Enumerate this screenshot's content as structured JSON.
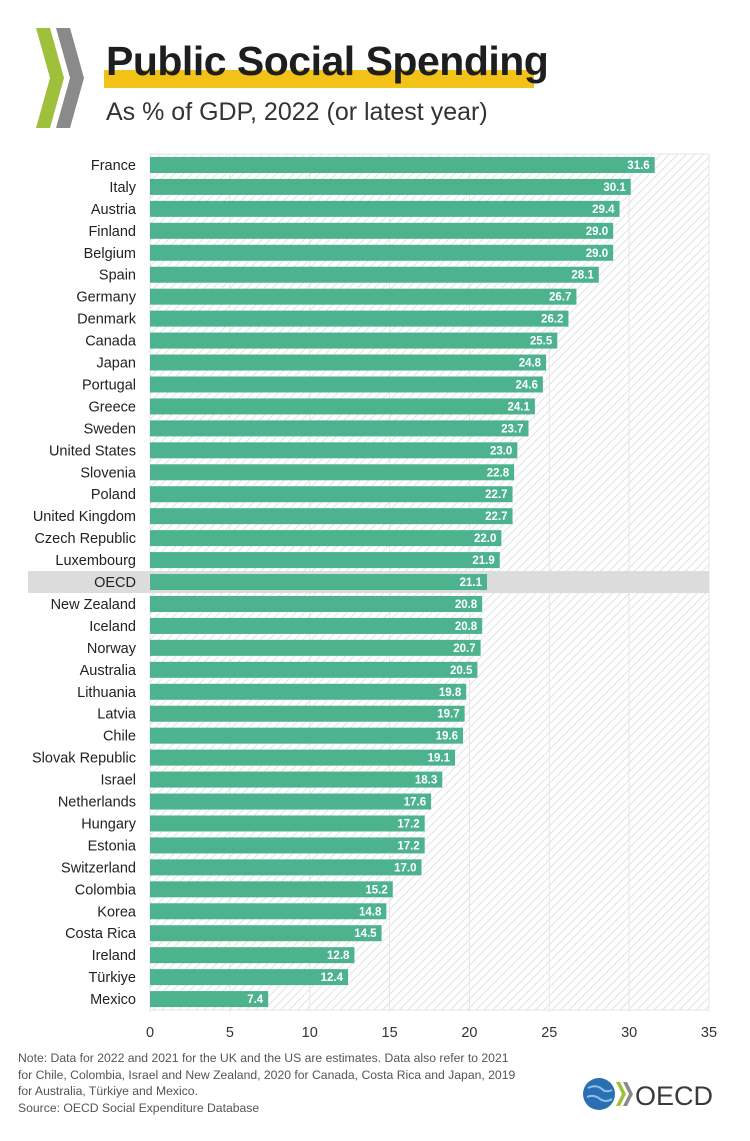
{
  "title": "Public Social Spending",
  "subtitle": "As % of GDP, 2022 (or latest year)",
  "colors": {
    "bar": "#4db38e",
    "highlight_row": "#dcdcdc",
    "title_highlight": "#f2c218",
    "logo_green": "#9ec03a",
    "logo_gray": "#8a8a8a"
  },
  "chart_data": {
    "type": "bar",
    "orientation": "horizontal",
    "title": "Public Social Spending",
    "subtitle": "As % of GDP, 2022 (or latest year)",
    "categories": [
      "France",
      "Italy",
      "Austria",
      "Finland",
      "Belgium",
      "Spain",
      "Germany",
      "Denmark",
      "Canada",
      "Japan",
      "Portugal",
      "Greece",
      "Sweden",
      "United States",
      "Slovenia",
      "Poland",
      "United Kingdom",
      "Czech Republic",
      "Luxembourg",
      "OECD",
      "New Zealand",
      "Iceland",
      "Norway",
      "Australia",
      "Lithuania",
      "Latvia",
      "Chile",
      "Slovak Republic",
      "Israel",
      "Netherlands",
      "Hungary",
      "Estonia",
      "Switzerland",
      "Colombia",
      "Korea",
      "Costa Rica",
      "Ireland",
      "Türkiye",
      "Mexico"
    ],
    "values": [
      31.6,
      30.1,
      29.4,
      29.0,
      29.0,
      28.1,
      26.7,
      26.2,
      25.5,
      24.8,
      24.6,
      24.1,
      23.7,
      23.0,
      22.8,
      22.7,
      22.7,
      22.0,
      21.9,
      21.1,
      20.8,
      20.8,
      20.7,
      20.5,
      19.8,
      19.7,
      19.6,
      19.1,
      18.3,
      17.6,
      17.2,
      17.2,
      17.0,
      15.2,
      14.8,
      14.5,
      12.8,
      12.4,
      7.4
    ],
    "value_labels": [
      "31.6",
      "30.1",
      "29.4",
      "29.0",
      "29.0",
      "28.1",
      "26.7",
      "26.2",
      "25.5",
      "24.8",
      "24.6",
      "24.1",
      "23.7",
      "23.0",
      "22.8",
      "22.7",
      "22.7",
      "22.0",
      "21.9",
      "21.1",
      "20.8",
      "20.8",
      "20.7",
      "20.5",
      "19.8",
      "19.7",
      "19.6",
      "19.1",
      "18.3",
      "17.6",
      "17.2",
      "17.2",
      "17.0",
      "15.2",
      "14.8",
      "14.5",
      "12.8",
      "12.4",
      "7.4"
    ],
    "highlight_category": "OECD",
    "xlim": [
      0,
      35
    ],
    "xticks": [
      "0",
      "5",
      "10",
      "15",
      "20",
      "25",
      "30",
      "35"
    ],
    "xlabel": "",
    "ylabel": "",
    "grid": true
  },
  "note": {
    "lines": [
      "Note: Data for 2022 and 2021 for the UK and the US are estimates. Data also refer to 2021",
      "for Chile, Colombia, Israel and New Zealand, 2020 for Canada, Costa Rica and Japan, 2019",
      "for Australia, Türkiye and Mexico.",
      "Source:  OECD Social Expenditure Database"
    ]
  },
  "footer": {
    "logo_text": "OECD"
  }
}
